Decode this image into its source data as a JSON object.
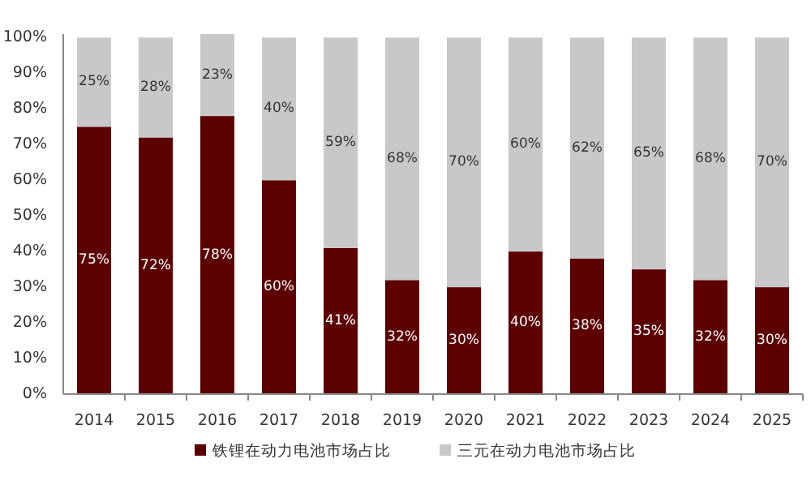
{
  "chart_data": {
    "type": "bar",
    "stacked": true,
    "categories": [
      "2014",
      "2015",
      "2016",
      "2017",
      "2018",
      "2019",
      "2020",
      "2021",
      "2022",
      "2023",
      "2024",
      "2025"
    ],
    "series": [
      {
        "name": "铁锂在动力电池市场占比",
        "color": "#5c0000",
        "values": [
          75,
          72,
          78,
          60,
          41,
          32,
          30,
          40,
          38,
          35,
          32,
          30
        ],
        "value_labels": [
          "75%",
          "72%",
          "78%",
          "60%",
          "41%",
          "32%",
          "30%",
          "40%",
          "38%",
          "35%",
          "32%",
          "30%"
        ]
      },
      {
        "name": "三元在动力电池市场占比",
        "color": "#c8c8ca",
        "values": [
          25,
          28,
          23,
          40,
          59,
          68,
          70,
          60,
          62,
          65,
          68,
          70
        ],
        "value_labels": [
          "25%",
          "28%",
          "23%",
          "40%",
          "59%",
          "68%",
          "70%",
          "60%",
          "62%",
          "65%",
          "68%",
          "70%"
        ]
      }
    ],
    "ylim": [
      0,
      101
    ],
    "yticks": [
      {
        "value": 0,
        "label": "0%"
      },
      {
        "value": 10,
        "label": "10%"
      },
      {
        "value": 20,
        "label": "20%"
      },
      {
        "value": 30,
        "label": "30%"
      },
      {
        "value": 40,
        "label": "40%"
      },
      {
        "value": 50,
        "label": "50%"
      },
      {
        "value": 60,
        "label": "60%"
      },
      {
        "value": 70,
        "label": "70%"
      },
      {
        "value": 80,
        "label": "80%"
      },
      {
        "value": 90,
        "label": "90%"
      },
      {
        "value": 100,
        "label": "100%"
      }
    ],
    "grid": false,
    "legend": "bottom"
  }
}
